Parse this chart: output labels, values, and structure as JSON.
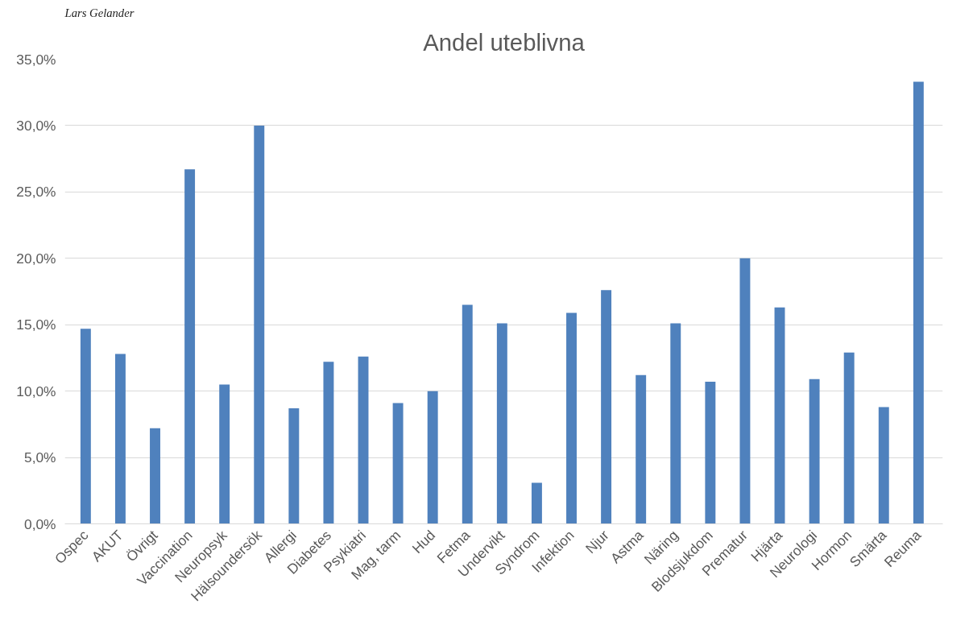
{
  "chart_data": {
    "type": "bar",
    "title": "Andel uteblivna",
    "categories": [
      "Ospec",
      "AKUT",
      "Övrigt",
      "Vaccination",
      "Neuropsyk",
      "Hälsoundersök",
      "Allergi",
      "Diabetes",
      "Psykiatri",
      "Mag, tarm",
      "Hud",
      "Fetma",
      "Undervikt",
      "Syndrom",
      "Infektion",
      "Njur",
      "Astma",
      "Näring",
      "Blodsjukdom",
      "Prematur",
      "Hjärta",
      "Neurologi",
      "Hormon",
      "Smärta",
      "Reuma"
    ],
    "values": [
      14.7,
      12.8,
      7.2,
      26.7,
      10.5,
      30.0,
      8.7,
      12.2,
      12.6,
      9.1,
      10.0,
      16.5,
      15.1,
      3.1,
      15.9,
      17.6,
      11.2,
      15.1,
      10.7,
      20.0,
      16.3,
      10.9,
      12.9,
      8.8,
      33.3
    ],
    "color": "#4f81bd",
    "ylim": [
      0,
      35
    ],
    "yticks": [
      {
        "value": 0,
        "label": "0,0%"
      },
      {
        "value": 5,
        "label": "5,0%"
      },
      {
        "value": 10,
        "label": "10,0%"
      },
      {
        "value": 15,
        "label": "15,0%"
      },
      {
        "value": 20,
        "label": "20,0%"
      },
      {
        "value": 25,
        "label": "25,0%"
      },
      {
        "value": 30,
        "label": "30,0%"
      },
      {
        "value": 35,
        "label": "35,0%"
      }
    ],
    "grid": "y",
    "annotations": [
      "Lars Gelander"
    ]
  }
}
